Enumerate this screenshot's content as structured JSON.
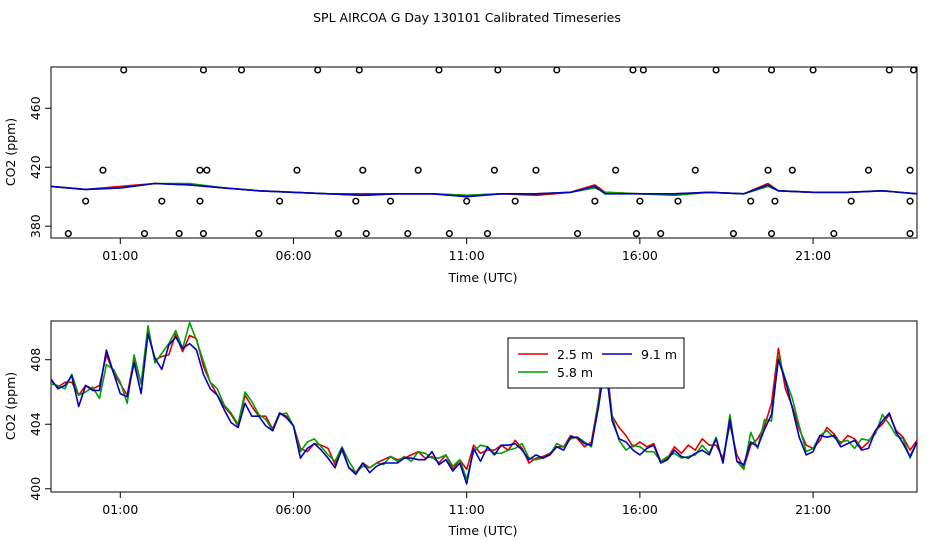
{
  "title": "SPL AIRCOA G  Day 130101  Calibrated Timeseries",
  "chart_data": [
    {
      "type": "line",
      "ylabel": "CO2 (ppm)",
      "xlabel": "Time (UTC)",
      "xlim": [
        -1.0,
        24.0
      ],
      "ylim": [
        372,
        488
      ],
      "xticks": [
        {
          "v": 1,
          "label": "01:00"
        },
        {
          "v": 6,
          "label": "06:00"
        },
        {
          "v": 11,
          "label": "11:00"
        },
        {
          "v": 16,
          "label": "16:00"
        },
        {
          "v": 21,
          "label": "21:00"
        }
      ],
      "yticks": [
        {
          "v": 380,
          "label": "380"
        },
        {
          "v": 420,
          "label": "420"
        },
        {
          "v": 460,
          "label": "460"
        }
      ],
      "series": [
        {
          "name": "",
          "color": "#e00000",
          "x": [
            -1,
            0,
            1,
            2,
            3,
            4,
            5,
            6,
            7,
            8,
            9,
            10,
            11,
            12,
            13,
            14,
            14.7,
            15,
            16,
            17,
            18,
            19,
            19.7,
            20,
            21,
            22,
            23,
            24
          ],
          "values": [
            407,
            405,
            407,
            409,
            408,
            406,
            404,
            403,
            402,
            402,
            402,
            402,
            401,
            402,
            401,
            403,
            408,
            403,
            402,
            402,
            403,
            402,
            409,
            404,
            403,
            403,
            404,
            402
          ]
        },
        {
          "name": "",
          "color": "#00a000",
          "x": [
            -1,
            0,
            1,
            2,
            3,
            4,
            5,
            6,
            7,
            8,
            9,
            10,
            11,
            12,
            13,
            14,
            14.7,
            15,
            16,
            17,
            18,
            19,
            19.7,
            20,
            21,
            22,
            23,
            24
          ],
          "values": [
            407,
            405,
            406,
            409,
            409,
            406,
            404,
            403,
            402,
            401,
            402,
            402,
            401,
            402,
            402,
            403,
            406,
            403,
            402,
            401,
            403,
            402,
            407,
            404,
            403,
            403,
            404,
            402
          ]
        },
        {
          "name": "",
          "color": "#0000c0",
          "x": [
            -1,
            0,
            1,
            2,
            3,
            4,
            5,
            6,
            7,
            8,
            9,
            10,
            11,
            12,
            13,
            14,
            14.7,
            15,
            16,
            17,
            18,
            19,
            19.7,
            20,
            21,
            22,
            23,
            24
          ],
          "values": [
            407,
            405,
            406,
            409,
            408,
            406,
            404,
            403,
            402,
            401,
            402,
            402,
            400,
            402,
            402,
            403,
            407,
            402,
            402,
            402,
            403,
            402,
            408,
            404,
            403,
            403,
            404,
            402
          ]
        }
      ],
      "outliers_x": [
        -0.5,
        0.0,
        0.5,
        1.1,
        1.7,
        2.2,
        2.7,
        3.3,
        3.3,
        3.4,
        3.4,
        3.5,
        4.5,
        5.0,
        5.6,
        6.1,
        6.7,
        7.3,
        7.8,
        7.9,
        8.0,
        8.1,
        8.8,
        9.3,
        9.6,
        10.2,
        10.5,
        11.0,
        11.6,
        11.8,
        11.9,
        12.4,
        13.0,
        13.6,
        14.2,
        14.7,
        15.3,
        15.8,
        15.9,
        16.0,
        16.1,
        16.6,
        17.1,
        17.6,
        18.2,
        18.7,
        19.2,
        19.7,
        19.8,
        19.8,
        19.9,
        20.4,
        21.0,
        21.6,
        22.1,
        22.6,
        23.2,
        23.8,
        23.8,
        23.8,
        23.9
      ],
      "outliers_y": [
        375,
        397,
        418,
        486,
        375,
        397,
        375,
        397,
        418,
        486,
        375,
        418,
        486,
        375,
        397,
        418,
        486,
        375,
        397,
        486,
        418,
        375,
        397,
        375,
        418,
        486,
        375,
        397,
        375,
        418,
        486,
        397,
        418,
        486,
        375,
        397,
        418,
        486,
        375,
        397,
        486,
        375,
        397,
        418,
        486,
        375,
        397,
        418,
        486,
        375,
        397,
        418,
        486,
        375,
        397,
        418,
        486,
        375,
        397,
        418,
        486
      ]
    },
    {
      "type": "line",
      "ylabel": "CO2 (ppm)",
      "xlabel": "Time (UTC)",
      "xlim": [
        -1.0,
        24.0
      ],
      "ylim": [
        399.8,
        410.4
      ],
      "xticks": [
        {
          "v": 1,
          "label": "01:00"
        },
        {
          "v": 6,
          "label": "06:00"
        },
        {
          "v": 11,
          "label": "11:00"
        },
        {
          "v": 16,
          "label": "16:00"
        },
        {
          "v": 21,
          "label": "21:00"
        }
      ],
      "yticks": [
        {
          "v": 400,
          "label": "400"
        },
        {
          "v": 404,
          "label": "404"
        },
        {
          "v": 408,
          "label": "408"
        }
      ],
      "legend": {
        "position": "top-center",
        "entries": [
          {
            "label": "2.5 m",
            "color": "#e00000"
          },
          {
            "label": "9.1 m",
            "color": "#0000c0"
          },
          {
            "label": "5.8 m",
            "color": "#00a000"
          }
        ]
      },
      "x": [
        -1.0,
        -0.8,
        -0.6,
        -0.4,
        -0.2,
        0.0,
        0.2,
        0.4,
        0.6,
        0.8,
        1.0,
        1.2,
        1.4,
        1.6,
        1.8,
        2.0,
        2.2,
        2.4,
        2.6,
        2.8,
        3.0,
        3.2,
        3.4,
        3.6,
        3.8,
        4.0,
        4.2,
        4.4,
        4.6,
        4.8,
        5.0,
        5.2,
        5.4,
        5.6,
        5.8,
        6.0,
        6.2,
        6.4,
        6.6,
        6.8,
        7.0,
        7.2,
        7.4,
        7.6,
        7.8,
        8.0,
        8.2,
        8.4,
        8.6,
        8.8,
        9.0,
        9.2,
        9.4,
        9.6,
        9.8,
        10.0,
        10.2,
        10.4,
        10.6,
        10.8,
        11.0,
        11.2,
        11.4,
        11.6,
        11.8,
        12.0,
        12.2,
        12.4,
        12.6,
        12.8,
        13.0,
        13.2,
        13.4,
        13.6,
        13.8,
        14.0,
        14.2,
        14.4,
        14.6,
        14.8,
        15.0,
        15.2,
        15.4,
        15.6,
        15.8,
        16.0,
        16.2,
        16.4,
        16.6,
        16.8,
        17.0,
        17.2,
        17.4,
        17.6,
        17.8,
        18.0,
        18.2,
        18.4,
        18.6,
        18.8,
        19.0,
        19.2,
        19.4,
        19.6,
        19.8,
        20.0,
        20.2,
        20.4,
        20.6,
        20.8,
        21.0,
        21.2,
        21.4,
        21.6,
        21.8,
        22.0,
        22.2,
        22.4,
        22.6,
        22.8,
        23.0,
        23.2,
        23.4,
        23.6,
        23.8,
        24.0
      ],
      "series": [
        {
          "name": "2.5 m",
          "color": "#e00000",
          "values": [
            406.7,
            406.3,
            406.6,
            406.6,
            405.8,
            406.4,
            406.2,
            406.4,
            408.3,
            407.2,
            406.5,
            405.8,
            408.1,
            406.5,
            409.8,
            408.0,
            408.2,
            408.3,
            409.6,
            408.5,
            409.5,
            409.3,
            407.6,
            406.6,
            405.8,
            405.1,
            404.6,
            403.9,
            405.8,
            405.1,
            404.5,
            404.5,
            403.7,
            404.7,
            404.5,
            403.9,
            402.5,
            402.3,
            402.8,
            402.7,
            402.5,
            401.5,
            402.4,
            401.3,
            401.0,
            401.6,
            401.3,
            401.6,
            401.8,
            402.0,
            401.8,
            401.9,
            402.1,
            402.3,
            401.9,
            402.0,
            401.6,
            402.1,
            401.2,
            401.8,
            401.2,
            402.7,
            402.2,
            402.4,
            402.4,
            402.7,
            402.4,
            403.0,
            402.5,
            401.6,
            401.9,
            402.0,
            402.2,
            402.6,
            402.6,
            403.3,
            403.1,
            402.6,
            402.9,
            405.4,
            408.5,
            404.5,
            403.8,
            403.3,
            402.6,
            402.9,
            402.6,
            402.8,
            401.7,
            401.9,
            402.6,
            402.2,
            402.7,
            402.4,
            403.1,
            402.7,
            402.7,
            401.9,
            404.0,
            402.1,
            401.3,
            402.7,
            403.1,
            403.9,
            405.3,
            408.7,
            406.2,
            405.1,
            403.7,
            402.7,
            402.5,
            403.0,
            403.8,
            403.4,
            402.8,
            403.3,
            403.1,
            402.5,
            402.9,
            403.6,
            404.0,
            404.6,
            403.6,
            403.2,
            402.4,
            403.0
          ]
        },
        {
          "name": "5.8 m",
          "color": "#00a000",
          "values": [
            406.5,
            406.4,
            406.2,
            407.1,
            405.8,
            406.0,
            406.3,
            405.6,
            407.7,
            407.4,
            406.6,
            405.3,
            408.3,
            406.5,
            410.1,
            407.8,
            408.4,
            409.0,
            409.8,
            408.7,
            410.3,
            409.2,
            407.9,
            406.6,
            406.2,
            405.2,
            404.7,
            404.0,
            406.0,
            405.4,
            404.6,
            404.3,
            403.6,
            404.6,
            404.7,
            403.9,
            402.3,
            402.9,
            403.1,
            402.6,
            402.1,
            401.7,
            402.6,
            401.7,
            401.0,
            401.4,
            401.3,
            401.6,
            401.5,
            402.0,
            401.7,
            402.0,
            401.7,
            402.3,
            402.2,
            401.9,
            401.9,
            402.1,
            401.4,
            401.8,
            400.6,
            402.3,
            402.7,
            402.6,
            402.2,
            402.2,
            402.4,
            402.5,
            402.8,
            401.9,
            401.8,
            401.9,
            402.1,
            402.8,
            402.6,
            403.1,
            403.2,
            402.9,
            402.6,
            405.3,
            407.7,
            404.5,
            403.0,
            402.4,
            402.7,
            402.6,
            402.3,
            402.3,
            401.7,
            402.0,
            402.2,
            401.9,
            402.0,
            402.1,
            402.7,
            402.2,
            403.2,
            401.6,
            404.6,
            401.7,
            401.2,
            403.5,
            402.5,
            404.3,
            404.2,
            408.2,
            406.8,
            405.6,
            403.9,
            402.3,
            402.5,
            403.3,
            403.6,
            403.2,
            402.9,
            403.0,
            402.5,
            403.1,
            403.0,
            403.4,
            404.6,
            404.0,
            403.3,
            403.1,
            401.9,
            402.9
          ]
        },
        {
          "name": "9.1 m",
          "color": "#0000c0",
          "values": [
            406.8,
            406.2,
            406.4,
            407.0,
            405.1,
            406.4,
            406.1,
            406.1,
            408.6,
            407.2,
            405.9,
            405.7,
            407.8,
            405.9,
            409.6,
            408.1,
            407.4,
            408.9,
            409.4,
            408.7,
            409.0,
            408.6,
            407.1,
            406.2,
            405.8,
            404.9,
            404.1,
            403.8,
            405.3,
            404.5,
            404.5,
            403.9,
            403.6,
            404.7,
            404.4,
            403.9,
            401.9,
            402.5,
            402.8,
            402.4,
            401.9,
            401.3,
            402.5,
            401.3,
            400.9,
            401.6,
            401.0,
            401.4,
            401.6,
            401.6,
            401.6,
            401.9,
            401.9,
            401.8,
            401.8,
            402.3,
            401.5,
            401.8,
            401.1,
            401.6,
            400.3,
            402.5,
            401.7,
            402.6,
            402.1,
            402.7,
            402.7,
            402.8,
            402.4,
            401.8,
            402.1,
            401.9,
            402.1,
            402.6,
            402.4,
            403.2,
            403.2,
            402.8,
            402.7,
            405.0,
            407.8,
            404.2,
            403.1,
            402.9,
            402.4,
            402.1,
            402.5,
            402.7,
            401.6,
            401.8,
            402.4,
            402.0,
            401.9,
            402.2,
            402.4,
            402.1,
            403.1,
            401.6,
            404.3,
            401.7,
            401.5,
            402.9,
            402.6,
            403.7,
            404.6,
            408.0,
            406.7,
            405.0,
            403.2,
            402.1,
            402.3,
            403.3,
            403.2,
            403.3,
            402.6,
            402.8,
            403.0,
            402.4,
            402.5,
            403.6,
            404.2,
            404.7,
            403.5,
            402.8,
            402.0,
            402.9
          ]
        }
      ]
    }
  ]
}
